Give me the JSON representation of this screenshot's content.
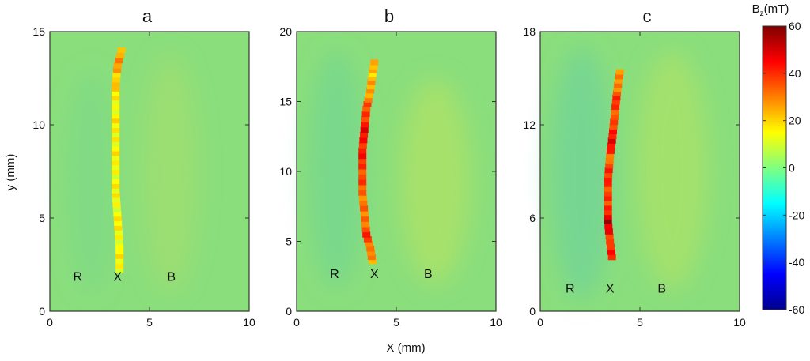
{
  "chart_data": {
    "type": "heatmap",
    "xlabel": "X (mm)",
    "ylabel": "y (mm)",
    "colorbar": {
      "label_main": "B",
      "label_sub": "z",
      "label_unit": "(mT)",
      "range": [
        -60,
        60
      ],
      "ticks": [
        60,
        40,
        20,
        0,
        -20,
        -40,
        -60
      ],
      "colormap": "jet"
    },
    "background_color": "#8ade7c",
    "panels": [
      {
        "title": "a",
        "xlim": [
          0,
          10
        ],
        "ylim": [
          0,
          15
        ],
        "xticks": [
          0,
          5,
          10
        ],
        "yticks": [
          0,
          5,
          10,
          15
        ],
        "region_labels": [
          {
            "text": "R",
            "x": 1.4,
            "y": 1.8
          },
          {
            "text": "X",
            "x": 3.4,
            "y": 1.8
          },
          {
            "text": "B",
            "x": 6.1,
            "y": 1.8
          }
        ],
        "trace": [
          {
            "x": 3.5,
            "y": 2.2,
            "bz": 15
          },
          {
            "x": 3.5,
            "y": 3.5,
            "bz": 15
          },
          {
            "x": 3.4,
            "y": 5.0,
            "bz": 14
          },
          {
            "x": 3.3,
            "y": 6.5,
            "bz": 14
          },
          {
            "x": 3.3,
            "y": 8.0,
            "bz": 15
          },
          {
            "x": 3.3,
            "y": 9.5,
            "bz": 16
          },
          {
            "x": 3.3,
            "y": 11.0,
            "bz": 16
          },
          {
            "x": 3.3,
            "y": 12.2,
            "bz": 18
          },
          {
            "x": 3.4,
            "y": 13.2,
            "bz": 28
          },
          {
            "x": 3.6,
            "y": 14.0,
            "bz": 22
          }
        ]
      },
      {
        "title": "b",
        "xlim": [
          0,
          10
        ],
        "ylim": [
          0,
          20
        ],
        "xticks": [
          0,
          5,
          10
        ],
        "yticks": [
          0,
          5,
          10,
          15,
          20
        ],
        "region_labels": [
          {
            "text": "R",
            "x": 1.9,
            "y": 2.6
          },
          {
            "text": "X",
            "x": 3.9,
            "y": 2.6
          },
          {
            "text": "B",
            "x": 6.6,
            "y": 2.6
          }
        ],
        "trace": [
          {
            "x": 3.8,
            "y": 3.6,
            "bz": 28
          },
          {
            "x": 3.7,
            "y": 4.5,
            "bz": 32
          },
          {
            "x": 3.5,
            "y": 5.5,
            "bz": 38
          },
          {
            "x": 3.4,
            "y": 7.0,
            "bz": 30
          },
          {
            "x": 3.3,
            "y": 8.5,
            "bz": 33
          },
          {
            "x": 3.3,
            "y": 10.0,
            "bz": 38
          },
          {
            "x": 3.3,
            "y": 11.5,
            "bz": 42
          },
          {
            "x": 3.4,
            "y": 13.0,
            "bz": 45
          },
          {
            "x": 3.5,
            "y": 14.5,
            "bz": 36
          },
          {
            "x": 3.7,
            "y": 15.8,
            "bz": 26
          },
          {
            "x": 3.8,
            "y": 17.0,
            "bz": 22
          },
          {
            "x": 3.9,
            "y": 17.8,
            "bz": 26
          }
        ]
      },
      {
        "title": "c",
        "xlim": [
          0,
          10
        ],
        "ylim": [
          0,
          18
        ],
        "xticks": [
          0,
          5,
          10
        ],
        "yticks": [
          0,
          6,
          12,
          18
        ],
        "region_labels": [
          {
            "text": "R",
            "x": 1.5,
            "y": 1.4
          },
          {
            "text": "X",
            "x": 3.5,
            "y": 1.4
          },
          {
            "text": "B",
            "x": 6.1,
            "y": 1.4
          }
        ],
        "trace": [
          {
            "x": 3.6,
            "y": 3.5,
            "bz": 45
          },
          {
            "x": 3.5,
            "y": 4.5,
            "bz": 38
          },
          {
            "x": 3.4,
            "y": 5.8,
            "bz": 52
          },
          {
            "x": 3.4,
            "y": 7.0,
            "bz": 36
          },
          {
            "x": 3.4,
            "y": 8.5,
            "bz": 40
          },
          {
            "x": 3.5,
            "y": 10.0,
            "bz": 35
          },
          {
            "x": 3.6,
            "y": 11.0,
            "bz": 50
          },
          {
            "x": 3.7,
            "y": 12.2,
            "bz": 34
          },
          {
            "x": 3.8,
            "y": 13.5,
            "bz": 40
          },
          {
            "x": 3.9,
            "y": 14.6,
            "bz": 30
          },
          {
            "x": 4.0,
            "y": 15.4,
            "bz": 26
          }
        ]
      }
    ]
  }
}
